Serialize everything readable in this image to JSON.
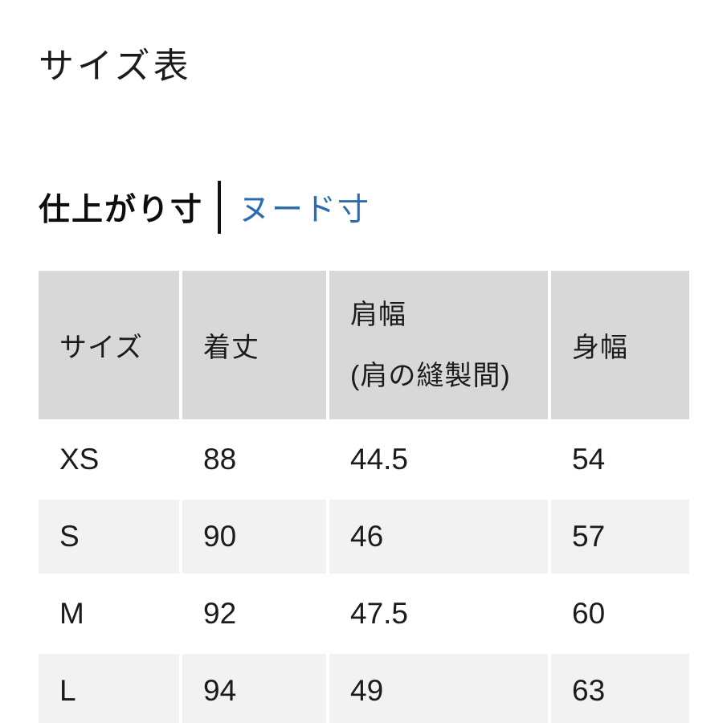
{
  "page": {
    "title": "サイズ表"
  },
  "tabs": {
    "active_label": "仕上がり寸",
    "link_label": "ヌード寸"
  },
  "theme": {
    "link_blue": "#2b6cb0",
    "header_bg": "#d8d8d8",
    "alt_row_bg": "#f2f2f2",
    "text": "#1a1a1a",
    "page_bg": "#ffffff"
  },
  "size_table": {
    "columns": [
      {
        "label": "サイズ",
        "sublabel": ""
      },
      {
        "label": "着丈",
        "sublabel": ""
      },
      {
        "label": "肩幅",
        "sublabel": "(肩の縫製間)"
      },
      {
        "label": "身幅",
        "sublabel": ""
      }
    ],
    "rows": [
      {
        "size": "XS",
        "values": [
          "88",
          "44.5",
          "54"
        ]
      },
      {
        "size": "S",
        "values": [
          "90",
          "46",
          "57"
        ]
      },
      {
        "size": "M",
        "values": [
          "92",
          "47.5",
          "60"
        ]
      },
      {
        "size": "L",
        "values": [
          "94",
          "49",
          "63"
        ]
      }
    ]
  },
  "chart_data": {
    "type": "table",
    "title": "サイズ表",
    "categories": [
      "サイズ",
      "着丈",
      "肩幅 (肩の縫製間)",
      "身幅"
    ],
    "series": [
      {
        "name": "XS",
        "values": [
          88,
          44.5,
          54
        ]
      },
      {
        "name": "S",
        "values": [
          90,
          46,
          57
        ]
      },
      {
        "name": "M",
        "values": [
          92,
          47.5,
          60
        ]
      },
      {
        "name": "L",
        "values": [
          94,
          49,
          63
        ]
      }
    ]
  }
}
